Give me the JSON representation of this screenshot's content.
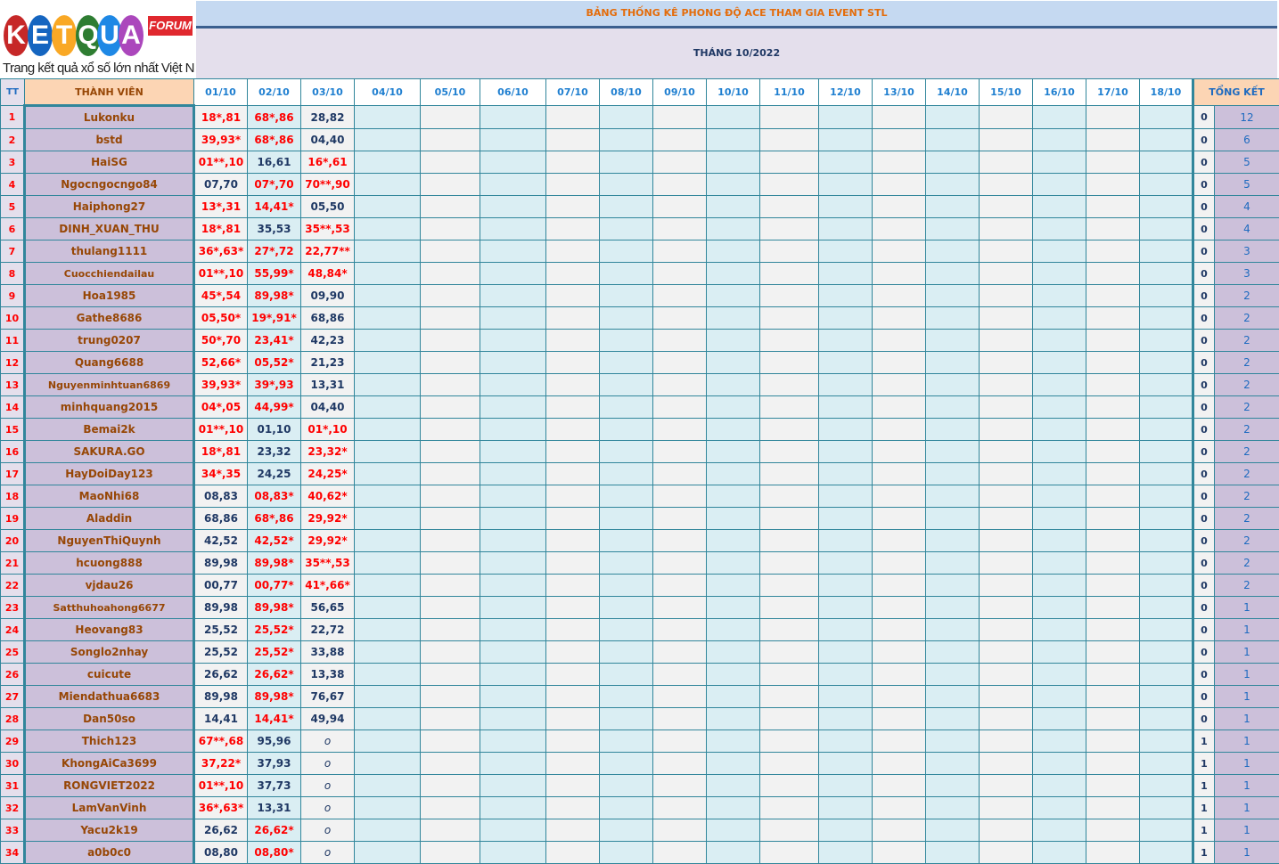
{
  "logo": {
    "text": "KETQUA2",
    "badge": "FORUM",
    "tagline": "Trang kết quả xổ số lớn nhất Việt Nam"
  },
  "title": "BẢNG THỐNG KÊ PHONG ĐỘ ACE THAM GIA EVENT STL",
  "month": "THÁNG 10/2022",
  "headers": {
    "tt": "TT",
    "member": "THÀNH VIÊN",
    "summary": "TỔNG KẾT"
  },
  "dates": [
    "01/10",
    "02/10",
    "03/10",
    "04/10",
    "05/10",
    "06/10",
    "07/10",
    "08/10",
    "09/10",
    "10/10",
    "11/10",
    "12/10",
    "13/10",
    "14/10",
    "15/10",
    "16/10",
    "17/10",
    "18/10"
  ],
  "colors": {
    "title": "#e46c0a",
    "hit": "#ff0000",
    "normal": "#1f3864",
    "member_bg": "#ccc0da",
    "header_bg": "#fcd5b4"
  },
  "rows": [
    {
      "tt": "1",
      "name": "Lukonku",
      "d": [
        "18*,81",
        "68*,86",
        "28,82"
      ],
      "a": "0",
      "b": "12"
    },
    {
      "tt": "2",
      "name": "bstd",
      "d": [
        "39,93*",
        "68*,86",
        "04,40"
      ],
      "a": "0",
      "b": "6"
    },
    {
      "tt": "3",
      "name": "HaiSG",
      "d": [
        "01**,10",
        "16,61",
        "16*,61"
      ],
      "a": "0",
      "b": "5"
    },
    {
      "tt": "4",
      "name": "Ngocngocngo84",
      "d": [
        "07,70",
        "07*,70",
        "70**,90"
      ],
      "a": "0",
      "b": "5"
    },
    {
      "tt": "5",
      "name": "Haiphong27",
      "d": [
        "13*,31",
        "14,41*",
        "05,50"
      ],
      "a": "0",
      "b": "4"
    },
    {
      "tt": "6",
      "name": "DINH_XUAN_THU",
      "d": [
        "18*,81",
        "35,53",
        "35**,53"
      ],
      "a": "0",
      "b": "4"
    },
    {
      "tt": "7",
      "name": "thulang1111",
      "d": [
        "36*,63*",
        "27*,72",
        "22,77**"
      ],
      "a": "0",
      "b": "3"
    },
    {
      "tt": "8",
      "name": "Cuocchiendailau",
      "d": [
        "01**,10",
        "55,99*",
        "48,84*"
      ],
      "a": "0",
      "b": "3"
    },
    {
      "tt": "9",
      "name": "Hoa1985",
      "d": [
        "45*,54",
        "89,98*",
        "09,90"
      ],
      "a": "0",
      "b": "2"
    },
    {
      "tt": "10",
      "name": "Gathe8686",
      "d": [
        "05,50*",
        "19*,91*",
        "68,86"
      ],
      "a": "0",
      "b": "2"
    },
    {
      "tt": "11",
      "name": "trung0207",
      "d": [
        "50*,70",
        "23,41*",
        "42,23"
      ],
      "a": "0",
      "b": "2"
    },
    {
      "tt": "12",
      "name": "Quang6688",
      "d": [
        "52,66*",
        "05,52*",
        "21,23"
      ],
      "a": "0",
      "b": "2"
    },
    {
      "tt": "13",
      "name": "Nguyenminhtuan6869",
      "d": [
        "39,93*",
        "39*,93",
        "13,31"
      ],
      "a": "0",
      "b": "2"
    },
    {
      "tt": "14",
      "name": "minhquang2015",
      "d": [
        "04*,05",
        "44,99*",
        "04,40"
      ],
      "a": "0",
      "b": "2"
    },
    {
      "tt": "15",
      "name": "Bemai2k",
      "d": [
        "01**,10",
        "01,10",
        "01*,10"
      ],
      "a": "0",
      "b": "2"
    },
    {
      "tt": "16",
      "name": "SAKURA.GO",
      "d": [
        "18*,81",
        "23,32",
        "23,32*"
      ],
      "a": "0",
      "b": "2"
    },
    {
      "tt": "17",
      "name": "HayDoiDay123",
      "d": [
        "34*,35",
        "24,25",
        "24,25*"
      ],
      "a": "0",
      "b": "2"
    },
    {
      "tt": "18",
      "name": "MaoNhi68",
      "d": [
        "08,83",
        "08,83*",
        "40,62*"
      ],
      "a": "0",
      "b": "2"
    },
    {
      "tt": "19",
      "name": "Aladdin",
      "d": [
        "68,86",
        "68*,86",
        "29,92*"
      ],
      "a": "0",
      "b": "2"
    },
    {
      "tt": "20",
      "name": "NguyenThiQuynh",
      "d": [
        "42,52",
        "42,52*",
        "29,92*"
      ],
      "a": "0",
      "b": "2"
    },
    {
      "tt": "21",
      "name": "hcuong888",
      "d": [
        "89,98",
        "89,98*",
        "35**,53"
      ],
      "a": "0",
      "b": "2"
    },
    {
      "tt": "22",
      "name": "vjdau26",
      "d": [
        "00,77",
        "00,77*",
        "41*,66*"
      ],
      "a": "0",
      "b": "2"
    },
    {
      "tt": "23",
      "name": "Satthuhoahong6677",
      "d": [
        "89,98",
        "89,98*",
        "56,65"
      ],
      "a": "0",
      "b": "1"
    },
    {
      "tt": "24",
      "name": "Heovang83",
      "d": [
        "25,52",
        "25,52*",
        "22,72"
      ],
      "a": "0",
      "b": "1"
    },
    {
      "tt": "25",
      "name": "Songlo2nhay",
      "d": [
        "25,52",
        "25,52*",
        "33,88"
      ],
      "a": "0",
      "b": "1"
    },
    {
      "tt": "26",
      "name": "cuicute",
      "d": [
        "26,62",
        "26,62*",
        "13,38"
      ],
      "a": "0",
      "b": "1"
    },
    {
      "tt": "27",
      "name": "Miendathua6683",
      "d": [
        "89,98",
        "89,98*",
        "76,67"
      ],
      "a": "0",
      "b": "1"
    },
    {
      "tt": "28",
      "name": "Dan50so",
      "d": [
        "14,41",
        "14,41*",
        "49,94"
      ],
      "a": "0",
      "b": "1"
    },
    {
      "tt": "29",
      "name": "Thich123",
      "d": [
        "67**,68",
        "95,96",
        "o"
      ],
      "a": "1",
      "b": "1"
    },
    {
      "tt": "30",
      "name": "KhongAiCa3699",
      "d": [
        "37,22*",
        "37,93",
        "o"
      ],
      "a": "1",
      "b": "1"
    },
    {
      "tt": "31",
      "name": "RONGVIET2022",
      "d": [
        "01**,10",
        "37,73",
        "o"
      ],
      "a": "1",
      "b": "1"
    },
    {
      "tt": "32",
      "name": "LamVanVinh",
      "d": [
        "36*,63*",
        "13,31",
        "o"
      ],
      "a": "1",
      "b": "1"
    },
    {
      "tt": "33",
      "name": "Yacu2k19",
      "d": [
        "26,62",
        "26,62*",
        "o"
      ],
      "a": "1",
      "b": "1"
    },
    {
      "tt": "34",
      "name": "a0b0c0",
      "d": [
        "08,80",
        "08,80*",
        "o"
      ],
      "a": "1",
      "b": "1"
    }
  ]
}
